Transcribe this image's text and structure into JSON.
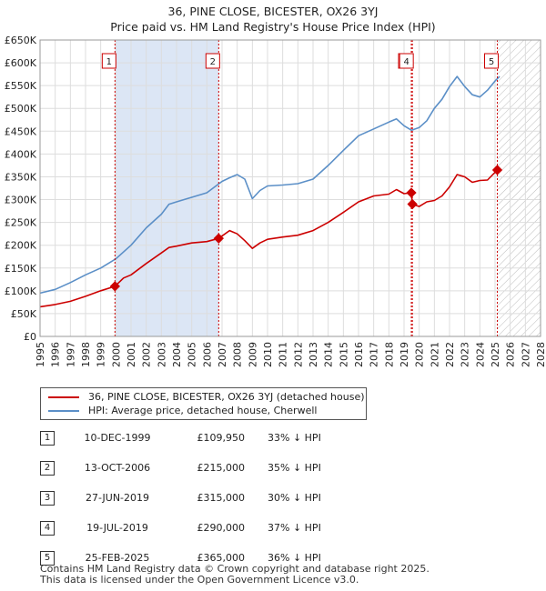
{
  "title_line1": "36, PINE CLOSE, BICESTER, OX26 3YJ",
  "title_line2": "Price paid vs. HM Land Registry's House Price Index (HPI)",
  "chart_data": {
    "type": "line",
    "title": "36, PINE CLOSE, BICESTER, OX26 3YJ — Price paid vs. HM Land Registry's House Price Index (HPI)",
    "xlim": [
      1995,
      2028
    ],
    "ylim": [
      0,
      650000
    ],
    "x_ticks": [
      1995,
      1996,
      1997,
      1998,
      1999,
      2000,
      2001,
      2002,
      2003,
      2004,
      2005,
      2006,
      2007,
      2008,
      2009,
      2010,
      2011,
      2012,
      2013,
      2014,
      2015,
      2016,
      2017,
      2018,
      2019,
      2020,
      2021,
      2022,
      2023,
      2024,
      2025,
      2026,
      2027,
      2028
    ],
    "x_tick_labels": [
      "1995",
      "1996",
      "1997",
      "1998",
      "1999",
      "2000",
      "2001",
      "2002",
      "2003",
      "2004",
      "2005",
      "2006",
      "2007",
      "2008",
      "2009",
      "2010",
      "2011",
      "2012",
      "2013",
      "2014",
      "2015",
      "2016",
      "2017",
      "2018",
      "2019",
      "2020",
      "2021",
      "2022",
      "2023",
      "2024",
      "2025",
      "2026",
      "2027",
      "2028"
    ],
    "y_ticks": [
      0,
      50000,
      100000,
      150000,
      200000,
      250000,
      300000,
      350000,
      400000,
      450000,
      500000,
      550000,
      600000,
      650000
    ],
    "y_tick_labels": [
      "£0",
      "£50K",
      "£100K",
      "£150K",
      "£200K",
      "£250K",
      "£300K",
      "£350K",
      "£400K",
      "£450K",
      "£500K",
      "£550K",
      "£600K",
      "£650K"
    ],
    "grid": true,
    "colors": {
      "property": "#cc0000",
      "hpi": "#5b8fc7",
      "shade": "#dce6f5",
      "marker_line": "#cc0000"
    },
    "shaded_ranges": [
      [
        1999.94,
        2006.78
      ]
    ],
    "hatched_from": 2025.15,
    "series": [
      {
        "name": "36, PINE CLOSE, BICESTER, OX26 3YJ (detached house)",
        "color": "#cc0000",
        "x": [
          1995.0,
          1996.0,
          1997.0,
          1998.0,
          1999.0,
          1999.94,
          2000.5,
          2001.0,
          2002.0,
          2003.0,
          2003.5,
          2004.0,
          2005.0,
          2006.0,
          2006.78,
          2007.5,
          2008.0,
          2008.5,
          2009.0,
          2009.5,
          2010.0,
          2011.0,
          2012.0,
          2013.0,
          2014.0,
          2015.0,
          2016.0,
          2017.0,
          2018.0,
          2018.5,
          2019.0,
          2019.48,
          2019.55,
          2020.0,
          2020.5,
          2021.0,
          2021.5,
          2022.0,
          2022.5,
          2023.0,
          2023.5,
          2024.0,
          2024.5,
          2025.15,
          2025.3
        ],
        "y": [
          65000,
          70000,
          77000,
          88000,
          100000,
          109950,
          128000,
          135000,
          160000,
          183000,
          195000,
          198000,
          205000,
          208000,
          215000,
          232000,
          225000,
          210000,
          193000,
          205000,
          213000,
          218000,
          222000,
          232000,
          250000,
          272000,
          295000,
          308000,
          312000,
          322000,
          313000,
          315000,
          290000,
          285000,
          295000,
          298000,
          308000,
          328000,
          355000,
          350000,
          338000,
          342000,
          343000,
          365000,
          367000
        ]
      },
      {
        "name": "HPI: Average price, detached house, Cherwell",
        "color": "#5b8fc7",
        "x": [
          1995.0,
          1996.0,
          1997.0,
          1998.0,
          1999.0,
          2000.0,
          2001.0,
          2002.0,
          2003.0,
          2003.5,
          2004.0,
          2004.5,
          2005.0,
          2006.0,
          2007.0,
          2007.5,
          2008.0,
          2008.5,
          2009.0,
          2009.5,
          2010.0,
          2011.0,
          2012.0,
          2013.0,
          2014.0,
          2015.0,
          2016.0,
          2017.0,
          2018.0,
          2018.5,
          2019.0,
          2019.5,
          2020.0,
          2020.5,
          2021.0,
          2021.5,
          2022.0,
          2022.5,
          2023.0,
          2023.5,
          2024.0,
          2024.5,
          2025.0,
          2025.3
        ],
        "y": [
          95000,
          103000,
          118000,
          135000,
          150000,
          170000,
          200000,
          238000,
          268000,
          290000,
          295000,
          300000,
          305000,
          315000,
          340000,
          348000,
          355000,
          345000,
          302000,
          320000,
          330000,
          332000,
          335000,
          345000,
          375000,
          408000,
          440000,
          455000,
          470000,
          477000,
          462000,
          452000,
          458000,
          473000,
          500000,
          520000,
          548000,
          570000,
          548000,
          530000,
          525000,
          540000,
          560000,
          570000
        ]
      }
    ],
    "markers": [
      {
        "label": "1",
        "x": 1999.94,
        "y": 109950
      },
      {
        "label": "2",
        "x": 2006.78,
        "y": 215000
      },
      {
        "label": "3",
        "x": 2019.48,
        "y": 315000
      },
      {
        "label": "4",
        "x": 2019.55,
        "y": 290000
      },
      {
        "label": "5",
        "x": 2025.15,
        "y": 365000
      }
    ]
  },
  "legend": {
    "property_label": "36, PINE CLOSE, BICESTER, OX26 3YJ (detached house)",
    "hpi_label": "HPI: Average price, detached house, Cherwell"
  },
  "sales": [
    {
      "num": "1",
      "date": "10-DEC-1999",
      "price": "£109,950",
      "hpi": "33% ↓ HPI"
    },
    {
      "num": "2",
      "date": "13-OCT-2006",
      "price": "£215,000",
      "hpi": "35% ↓ HPI"
    },
    {
      "num": "3",
      "date": "27-JUN-2019",
      "price": "£315,000",
      "hpi": "30% ↓ HPI"
    },
    {
      "num": "4",
      "date": "19-JUL-2019",
      "price": "£290,000",
      "hpi": "37% ↓ HPI"
    },
    {
      "num": "5",
      "date": "25-FEB-2025",
      "price": "£365,000",
      "hpi": "36% ↓ HPI"
    }
  ],
  "footer_line1": "Contains HM Land Registry data © Crown copyright and database right 2025.",
  "footer_line2": "This data is licensed under the Open Government Licence v3.0."
}
